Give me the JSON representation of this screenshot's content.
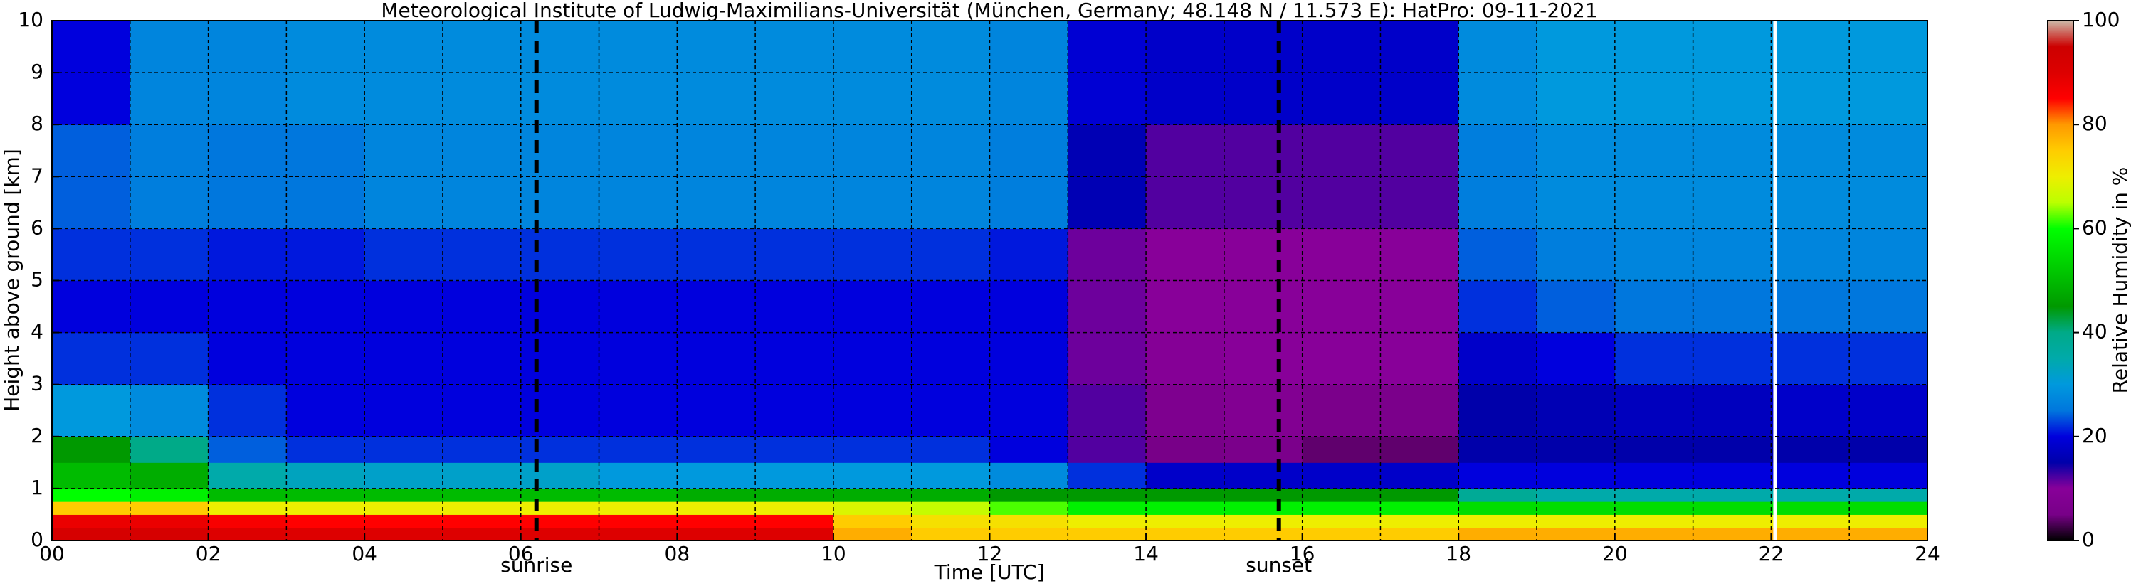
{
  "chart_data": {
    "type": "heatmap",
    "title": "Meteorological Institute of Ludwig-Maximilians-Universität (München, Germany; 48.148 N / 11.573 E):    HatPro: 09-11-2021",
    "x_label": "Time [UTC]",
    "y_label": "Height above ground [km]",
    "colorbar_label": "Relative Humidity in %",
    "xlim": [
      0,
      24
    ],
    "xticks": [
      {
        "value": 0,
        "label": "00"
      },
      {
        "value": 2,
        "label": "02"
      },
      {
        "value": 4,
        "label": "04"
      },
      {
        "value": 6,
        "label": "06"
      },
      {
        "value": 8,
        "label": "08"
      },
      10,
      12,
      14,
      16,
      18,
      20,
      22,
      24
    ],
    "xgrid_minor": [
      1,
      3,
      5,
      7,
      9,
      11,
      13,
      15,
      17,
      19,
      21,
      23
    ],
    "ylim": [
      0,
      10
    ],
    "yticks": [
      0,
      1,
      2,
      3,
      4,
      5,
      6,
      7,
      8,
      9,
      10
    ],
    "grid": true,
    "clim": [
      0,
      100
    ],
    "cticks": [
      0,
      20,
      40,
      60,
      80,
      100
    ],
    "colormap": [
      "#000000",
      "#780088",
      "#880099",
      "#0000aa",
      "#0000dd",
      "#0077dd",
      "#0099dd",
      "#00aaaa",
      "#00aa88",
      "#009900",
      "#00bb00",
      "#00dd00",
      "#00ff00",
      "#bbff00",
      "#eeee00",
      "#ffcc00",
      "#ff9900",
      "#ff0000",
      "#dd0000",
      "#cc0000",
      "#ccbbaa"
    ],
    "events": [
      {
        "x": 6.2,
        "label": "sunrise"
      },
      {
        "x": 15.7,
        "label": "sunset"
      }
    ],
    "missing_x": [
      22.05
    ],
    "x_edges": [
      0,
      1,
      2,
      3,
      4,
      5,
      6,
      7,
      8,
      9,
      10,
      11,
      12,
      13,
      14,
      15,
      16,
      17,
      18,
      19,
      20,
      21,
      22,
      23,
      24
    ],
    "y_edges": [
      0,
      0.25,
      0.5,
      0.75,
      1,
      1.5,
      2,
      3,
      4,
      5,
      6,
      8,
      10
    ],
    "values": [
      [
        92,
        92,
        90,
        90,
        90,
        90,
        90,
        90,
        90,
        90,
        78,
        75,
        75,
        75,
        75,
        75,
        75,
        75,
        78,
        78,
        78,
        78,
        78,
        78
      ],
      [
        88,
        88,
        86,
        85,
        85,
        85,
        85,
        85,
        85,
        85,
        75,
        72,
        72,
        70,
        70,
        70,
        70,
        70,
        70,
        70,
        70,
        70,
        70,
        70
      ],
      [
        75,
        75,
        70,
        70,
        70,
        70,
        70,
        70,
        70,
        70,
        68,
        66,
        62,
        58,
        58,
        58,
        58,
        58,
        55,
        55,
        55,
        55,
        55,
        55
      ],
      [
        60,
        58,
        50,
        50,
        50,
        50,
        50,
        50,
        48,
        48,
        48,
        48,
        45,
        45,
        45,
        45,
        45,
        45,
        38,
        35,
        35,
        35,
        35,
        35
      ],
      [
        50,
        48,
        35,
        33,
        32,
        32,
        32,
        30,
        30,
        30,
        30,
        30,
        28,
        22,
        18,
        18,
        18,
        18,
        20,
        20,
        20,
        20,
        20,
        20
      ],
      [
        45,
        40,
        24,
        22,
        22,
        22,
        22,
        22,
        22,
        22,
        22,
        22,
        20,
        12,
        5,
        6,
        4,
        4,
        15,
        15,
        15,
        15,
        15,
        15
      ],
      [
        30,
        28,
        22,
        20,
        20,
        20,
        20,
        20,
        20,
        20,
        20,
        20,
        20,
        12,
        7,
        8,
        6,
        6,
        15,
        16,
        17,
        17,
        18,
        18
      ],
      [
        22,
        22,
        20,
        20,
        20,
        20,
        20,
        20,
        20,
        20,
        20,
        20,
        20,
        11,
        9,
        10,
        10,
        10,
        18,
        20,
        22,
        22,
        22,
        22
      ],
      [
        20,
        20,
        20,
        20,
        20,
        20,
        20,
        20,
        20,
        20,
        20,
        20,
        20,
        11,
        10,
        10,
        10,
        10,
        22,
        24,
        25,
        25,
        25,
        25
      ],
      [
        22,
        22,
        21,
        21,
        22,
        22,
        22,
        22,
        22,
        22,
        22,
        22,
        21,
        11,
        10,
        10,
        10,
        10,
        24,
        26,
        27,
        27,
        27,
        27
      ],
      [
        24,
        26,
        25,
        25,
        27,
        27,
        27,
        27,
        27,
        27,
        27,
        27,
        26,
        16,
        12,
        12,
        12,
        12,
        26,
        28,
        28,
        28,
        28,
        28
      ],
      [
        20,
        27,
        27,
        28,
        28,
        28,
        28,
        28,
        28,
        28,
        28,
        28,
        27,
        19,
        18,
        18,
        18,
        18,
        28,
        30,
        30,
        30,
        30,
        30
      ]
    ]
  }
}
